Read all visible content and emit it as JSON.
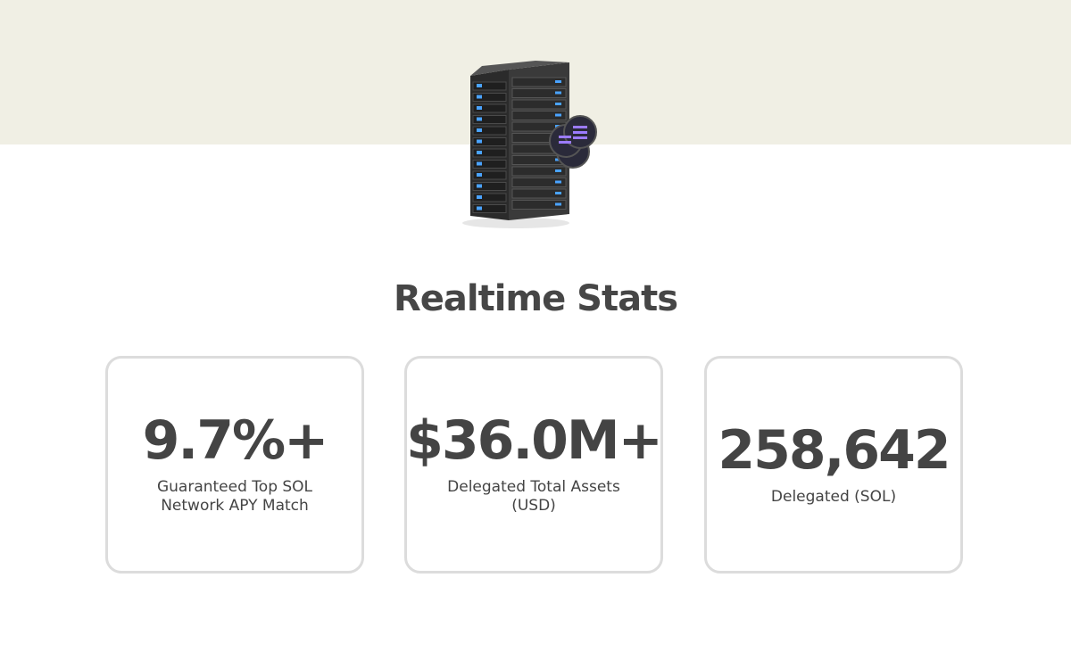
{
  "header": {
    "title": "Realtime Stats"
  },
  "stats": [
    {
      "value": "9.7%+",
      "label": "Guaranteed Top SOL Network APY Match"
    },
    {
      "value": "$36.0M+",
      "label": "Delegated Total Assets (USD)"
    },
    {
      "value": "258,642",
      "label": "Delegated (SOL)"
    }
  ]
}
